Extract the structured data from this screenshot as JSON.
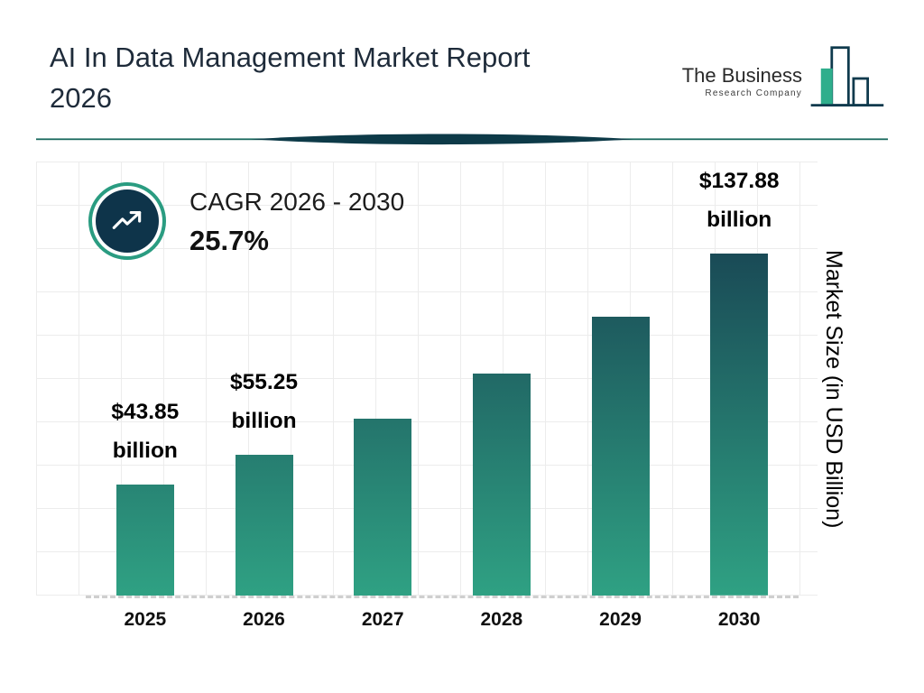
{
  "header": {
    "title_line1": "AI In Data Management Market Report",
    "title_line2": "2026",
    "logo": {
      "line1": "The Business",
      "line2": "Research Company"
    }
  },
  "cagr": {
    "label": "CAGR 2026 - 2030",
    "value": "25.7%"
  },
  "chart_data": {
    "type": "bar",
    "title": "AI In Data Management Market Report 2026",
    "categories": [
      "2025",
      "2026",
      "2027",
      "2028",
      "2029",
      "2030"
    ],
    "values": [
      43.85,
      55.25,
      69.45,
      87.3,
      109.74,
      137.88
    ],
    "value_labels": [
      {
        "amount": "$43.85",
        "unit": "billion"
      },
      {
        "amount": "$55.25",
        "unit": "billion"
      },
      null,
      null,
      null,
      {
        "amount": "$137.88",
        "unit": "billion"
      }
    ],
    "xlabel": "",
    "ylabel": "Market Size (in USD Billion)",
    "ylim": [
      0,
      150
    ],
    "grid": true,
    "legend": "none",
    "bar_colors": {
      "top": "#14334a",
      "bottom": "#2fa183"
    }
  }
}
